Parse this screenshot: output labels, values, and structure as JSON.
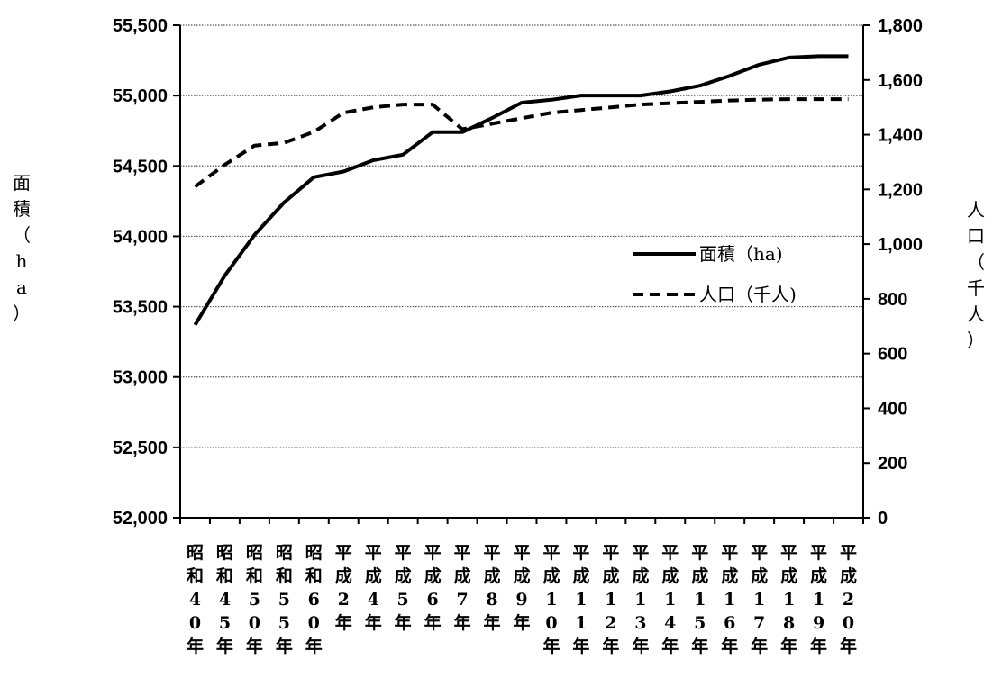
{
  "chart_data": {
    "type": "line",
    "categories": [
      "昭和40年",
      "昭和45年",
      "昭和50年",
      "昭和55年",
      "昭和60年",
      "平成2年",
      "平成4年",
      "平成5年",
      "平成6年",
      "平成7年",
      "平成8年",
      "平成9年",
      "平成10年",
      "平成11年",
      "平成12年",
      "平成13年",
      "平成14年",
      "平成15年",
      "平成16年",
      "平成17年",
      "平成18年",
      "平成19年",
      "平成20年"
    ],
    "category_label_columns": [
      [
        "昭",
        "和",
        "4",
        "0",
        "年"
      ],
      [
        "昭",
        "和",
        "4",
        "5",
        "年"
      ],
      [
        "昭",
        "和",
        "5",
        "0",
        "年"
      ],
      [
        "昭",
        "和",
        "5",
        "5",
        "年"
      ],
      [
        "昭",
        "和",
        "6",
        "0",
        "年"
      ],
      [
        "平",
        "成",
        "2",
        "年"
      ],
      [
        "平",
        "成",
        "4",
        "年"
      ],
      [
        "平",
        "成",
        "5",
        "年"
      ],
      [
        "平",
        "成",
        "6",
        "年"
      ],
      [
        "平",
        "成",
        "7",
        "年"
      ],
      [
        "平",
        "成",
        "8",
        "年"
      ],
      [
        "平",
        "成",
        "9",
        "年"
      ],
      [
        "平",
        "成",
        "1",
        "0",
        "年"
      ],
      [
        "平",
        "成",
        "1",
        "1",
        "年"
      ],
      [
        "平",
        "成",
        "1",
        "2",
        "年"
      ],
      [
        "平",
        "成",
        "1",
        "3",
        "年"
      ],
      [
        "平",
        "成",
        "1",
        "4",
        "年"
      ],
      [
        "平",
        "成",
        "1",
        "5",
        "年"
      ],
      [
        "平",
        "成",
        "1",
        "6",
        "年"
      ],
      [
        "平",
        "成",
        "1",
        "7",
        "年"
      ],
      [
        "平",
        "成",
        "1",
        "8",
        "年"
      ],
      [
        "平",
        "成",
        "1",
        "9",
        "年"
      ],
      [
        "平",
        "成",
        "2",
        "0",
        "年"
      ]
    ],
    "series": [
      {
        "name": "面積（ha)",
        "axis": "left",
        "style": "solid",
        "color": "#000000",
        "values": [
          53370,
          53720,
          54010,
          54240,
          54420,
          54460,
          54540,
          54580,
          54740,
          54740,
          54840,
          54950,
          54970,
          55000,
          55000,
          55000,
          55030,
          55070,
          55140,
          55220,
          55270,
          55280,
          55280
        ]
      },
      {
        "name": "人口（千人)",
        "axis": "right",
        "style": "dashed",
        "color": "#000000",
        "values": [
          1210,
          1290,
          1360,
          1370,
          1410,
          1480,
          1500,
          1510,
          1510,
          1420,
          1440,
          1460,
          1480,
          1490,
          1500,
          1510,
          1515,
          1520,
          1525,
          1528,
          1530,
          1530,
          1530
        ]
      }
    ],
    "y_left": {
      "min": 52000,
      "max": 55500,
      "step": 500,
      "tick_labels": [
        "52,000",
        "52,500",
        "53,000",
        "53,500",
        "54,000",
        "54,500",
        "55,000",
        "55,500"
      ],
      "label_chars": [
        "面",
        "積",
        "（",
        "h",
        "a",
        "）"
      ]
    },
    "y_right": {
      "min": 0,
      "max": 1800,
      "step": 200,
      "tick_labels": [
        "0",
        "200",
        "400",
        "600",
        "800",
        "1,000",
        "1,200",
        "1,400",
        "1,600",
        "1,800"
      ],
      "label_chars": [
        "人",
        "口",
        "（",
        "千",
        "人",
        "）"
      ]
    },
    "legend": {
      "placement": "center-right",
      "entries": [
        {
          "label": "面積（ha)",
          "style": "solid"
        },
        {
          "label": "人口（千人)",
          "style": "dashed"
        }
      ]
    },
    "grid": {
      "horizontal": true,
      "vertical": false,
      "style": "dotted"
    }
  }
}
